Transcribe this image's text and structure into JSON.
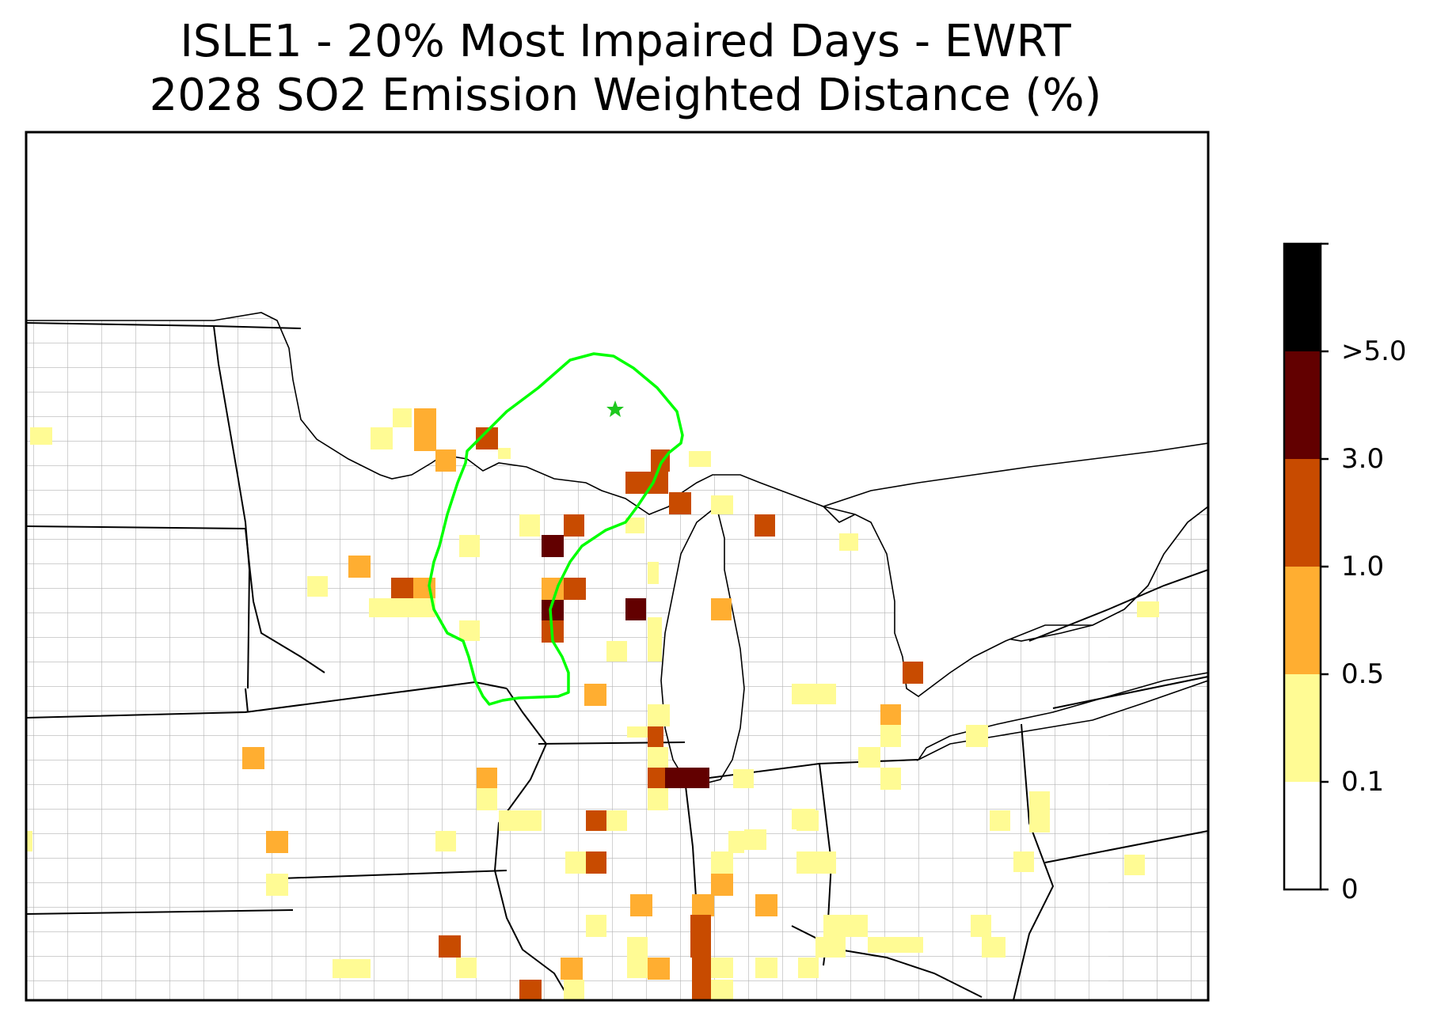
{
  "title_line1": "ISLE1 - 20% Most Impaired Days - EWRT",
  "title_line2": "2028 SO2 Emission Weighted Distance (%)",
  "colorbar": {
    "labels": [
      ">5.0",
      "3.0",
      "1.0",
      "0.5",
      "0.1",
      "0"
    ],
    "colors": [
      "#000000",
      "#620000",
      "#c84b00",
      "#ffae31",
      "#fffb94",
      "#ffffff"
    ]
  },
  "colors": {
    "state_border": "#000000",
    "county_border": "#a0a0a0",
    "contour": "#00ff00",
    "star": "#1ec81e"
  },
  "markers": {
    "site_icon": "star-icon"
  }
}
